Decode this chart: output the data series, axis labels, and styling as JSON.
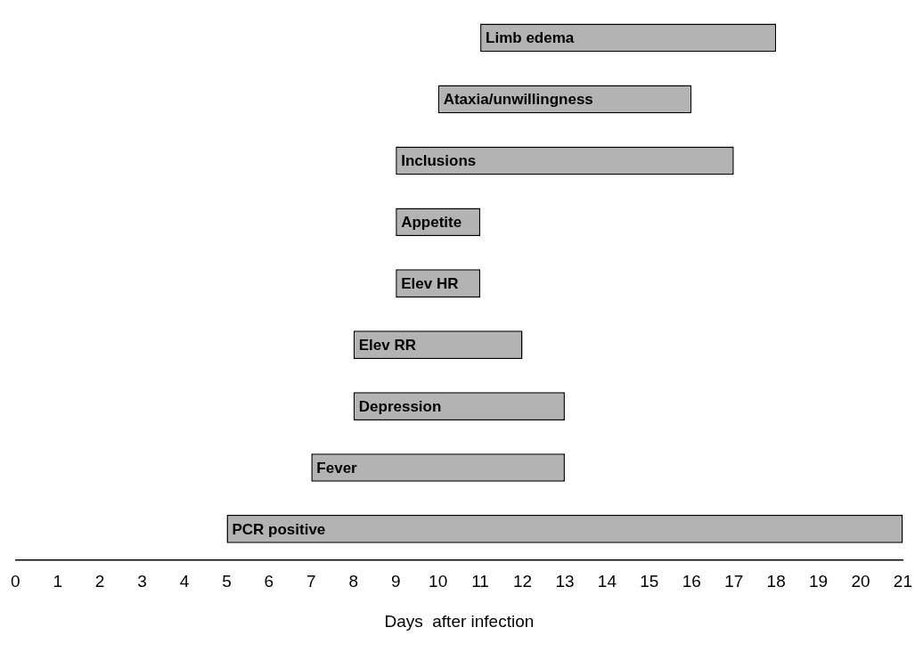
{
  "chart_data": {
    "type": "bar",
    "orientation": "horizontal",
    "xlabel": "Days  after infection",
    "categories": [
      "Limb edema",
      "Ataxia/unwillingness",
      "Inclusions",
      "Appetite",
      "Elev HR",
      "Elev RR",
      "Depression",
      "Fever",
      "PCR positive"
    ],
    "base": [
      11,
      10,
      9,
      9,
      9,
      8,
      8,
      7,
      5
    ],
    "values": [
      7,
      6,
      8,
      2,
      2,
      4,
      5,
      6,
      16
    ],
    "color": "#b3b3b3",
    "xlim": [
      0,
      21
    ],
    "xticks": [
      0,
      1,
      2,
      3,
      4,
      5,
      6,
      7,
      8,
      9,
      10,
      11,
      12,
      13,
      14,
      15,
      16,
      17,
      18,
      19,
      20,
      21
    ],
    "grid": false,
    "legend": false
  }
}
